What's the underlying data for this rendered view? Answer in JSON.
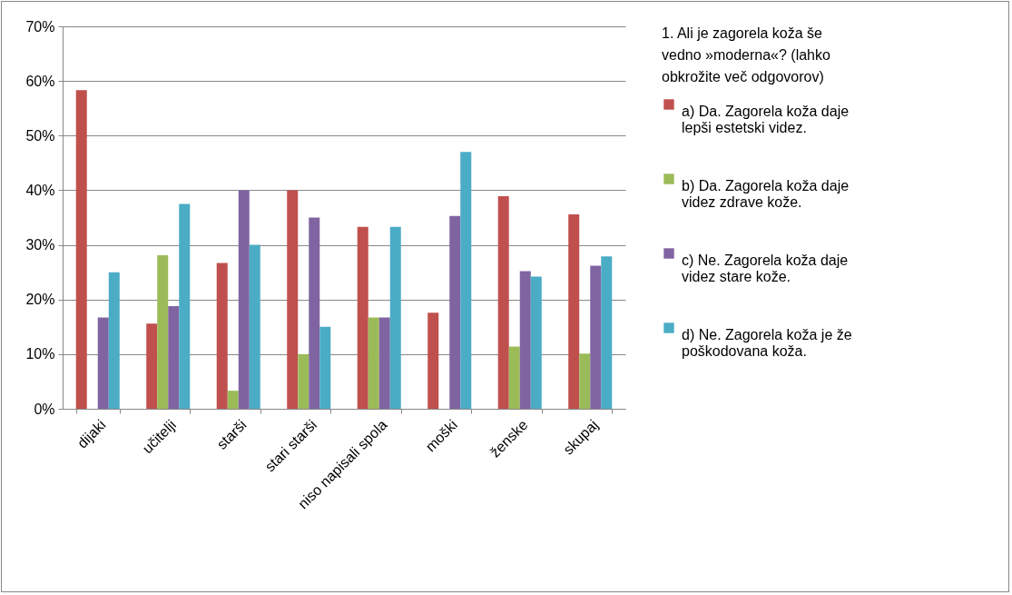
{
  "chart_data": {
    "type": "bar",
    "legend_title": "1. Ali je zagorela koža še vedno »moderna«? (lahko obkrožite več odgovorov)",
    "categories": [
      "dijaki",
      "učitelji",
      "starši",
      "stari starši",
      "niso napisali spola",
      "moški",
      "ženske",
      "skupaj"
    ],
    "series": [
      {
        "name": "a) Da. Zagorela koža daje lepši estetski videz.",
        "color": "#c0504d",
        "values": [
          58.3,
          15.6,
          26.7,
          40,
          33.3,
          17.6,
          38.9,
          35.6
        ]
      },
      {
        "name": "b) Da. Zagorela koža daje videz zdrave kože.",
        "color": "#9bbb59",
        "values": [
          0,
          28.1,
          3.3,
          10,
          16.7,
          0,
          11.4,
          10.1
        ]
      },
      {
        "name": "c) Ne. Zagorela koža daje videz stare kože.",
        "color": "#8064a2",
        "values": [
          16.7,
          18.8,
          40,
          35,
          16.7,
          35.3,
          25.2,
          26.2
        ]
      },
      {
        "name": "d) Ne. Zagorela koža je že poškodovana koža.",
        "color": "#4bacc6",
        "values": [
          25,
          37.5,
          30,
          15,
          33.3,
          47,
          24.2,
          27.9
        ]
      }
    ],
    "ylim": [
      0,
      70
    ],
    "yticks": [
      {
        "value": 0,
        "label": "0%"
      },
      {
        "value": 10,
        "label": "10%"
      },
      {
        "value": 20,
        "label": "20%"
      },
      {
        "value": 30,
        "label": "30%"
      },
      {
        "value": 40,
        "label": "40%"
      },
      {
        "value": 50,
        "label": "50%"
      },
      {
        "value": 60,
        "label": "60%"
      },
      {
        "value": 70,
        "label": "70%"
      }
    ],
    "grid": "y",
    "legend": "right"
  }
}
